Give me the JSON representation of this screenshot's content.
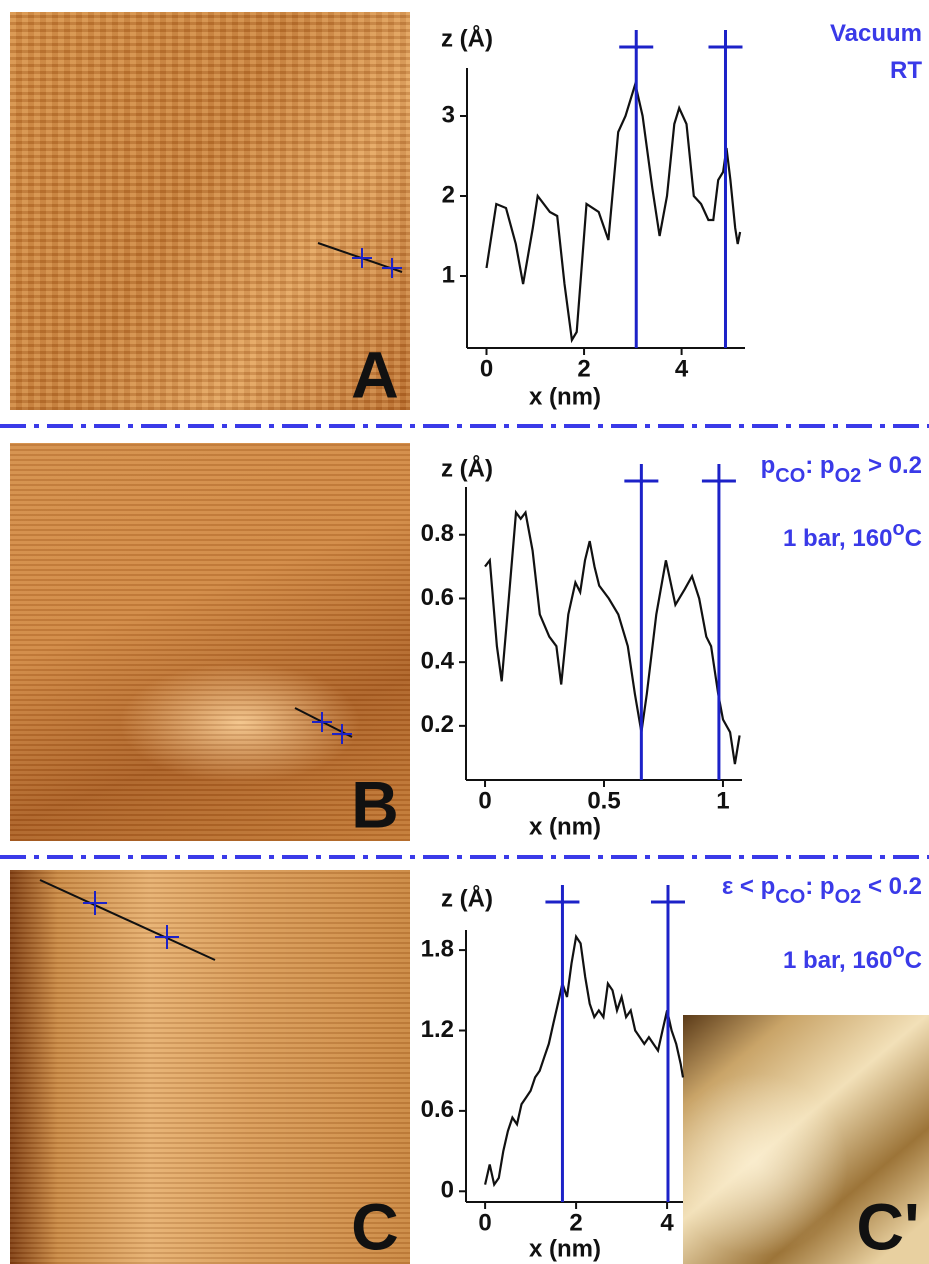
{
  "chart_data": [
    {
      "type": "line",
      "panel_label": "A",
      "x_label": "x (nm)",
      "y_label": "z (Å)",
      "x": [
        0,
        0.2,
        0.4,
        0.6,
        0.75,
        0.95,
        1.05,
        1.3,
        1.45,
        1.6,
        1.75,
        1.85,
        2.05,
        2.3,
        2.5,
        2.7,
        2.85,
        3.05,
        3.2,
        3.4,
        3.55,
        3.7,
        3.85,
        3.95,
        4.1,
        4.25,
        4.4,
        4.55,
        4.65,
        4.75,
        4.85,
        4.92,
        5.0,
        5.1,
        5.15,
        5.2
      ],
      "values": [
        1.1,
        1.9,
        1.85,
        1.4,
        0.9,
        1.6,
        2.0,
        1.8,
        1.75,
        0.9,
        0.2,
        0.3,
        1.9,
        1.8,
        1.45,
        2.8,
        3.0,
        3.4,
        3.0,
        2.1,
        1.5,
        2.0,
        2.9,
        3.1,
        2.9,
        2.0,
        1.9,
        1.7,
        1.7,
        2.2,
        2.3,
        2.6,
        2.2,
        1.6,
        1.4,
        1.55
      ],
      "color": "#111111",
      "xlim": [
        -0.4,
        5.3
      ],
      "ylim": [
        0.1,
        3.6
      ],
      "xticks": [
        0,
        2,
        4
      ],
      "yticks": [
        1,
        2,
        3
      ],
      "markers": [
        3.07,
        4.9
      ],
      "marker_color": "#1c22c8",
      "annotations": [
        [
          "Vacuum"
        ],
        [
          "RT"
        ]
      ]
    },
    {
      "type": "line",
      "panel_label": "B",
      "x_label": "x (nm)",
      "y_label": "z (Å)",
      "x": [
        0,
        0.02,
        0.05,
        0.07,
        0.1,
        0.13,
        0.15,
        0.17,
        0.2,
        0.23,
        0.27,
        0.3,
        0.32,
        0.35,
        0.38,
        0.4,
        0.42,
        0.44,
        0.46,
        0.48,
        0.52,
        0.56,
        0.6,
        0.63,
        0.657,
        0.68,
        0.72,
        0.76,
        0.8,
        0.84,
        0.87,
        0.9,
        0.93,
        0.95,
        0.98,
        1.0,
        1.03,
        1.05,
        1.07
      ],
      "values": [
        0.7,
        0.72,
        0.45,
        0.34,
        0.6,
        0.87,
        0.85,
        0.87,
        0.75,
        0.55,
        0.48,
        0.45,
        0.33,
        0.55,
        0.65,
        0.62,
        0.72,
        0.78,
        0.7,
        0.64,
        0.6,
        0.55,
        0.45,
        0.3,
        0.18,
        0.3,
        0.55,
        0.72,
        0.58,
        0.63,
        0.67,
        0.6,
        0.48,
        0.45,
        0.3,
        0.22,
        0.18,
        0.08,
        0.17
      ],
      "color": "#111111",
      "xlim": [
        -0.08,
        1.08
      ],
      "ylim": [
        0.03,
        0.95
      ],
      "xticks": [
        0,
        0.5,
        1
      ],
      "yticks": [
        0.2,
        0.4,
        0.6,
        0.8
      ],
      "markers": [
        0.657,
        0.983
      ],
      "marker_color": "#1c22c8",
      "annotations": [
        [
          "p",
          {
            "sub": "CO"
          },
          ": p",
          {
            "sub": "O2"
          },
          " > 0.2"
        ],
        [
          "1 bar, 160",
          {
            "sup": "o"
          },
          "C"
        ]
      ]
    },
    {
      "type": "line",
      "panel_label": "C",
      "inset_label": "C'",
      "x_label": "x (nm)",
      "y_label": "z (Å)",
      "x": [
        0,
        0.1,
        0.2,
        0.3,
        0.4,
        0.5,
        0.6,
        0.7,
        0.8,
        0.9,
        1.0,
        1.1,
        1.2,
        1.3,
        1.4,
        1.5,
        1.6,
        1.7,
        1.8,
        1.9,
        2.0,
        2.1,
        2.2,
        2.3,
        2.4,
        2.5,
        2.6,
        2.7,
        2.8,
        2.9,
        3.0,
        3.1,
        3.2,
        3.3,
        3.4,
        3.5,
        3.6,
        3.7,
        3.8,
        3.9,
        4.0,
        4.1,
        4.2,
        4.3,
        4.35
      ],
      "values": [
        0.05,
        0.2,
        0.05,
        0.1,
        0.3,
        0.45,
        0.55,
        0.5,
        0.65,
        0.7,
        0.75,
        0.85,
        0.9,
        1.0,
        1.1,
        1.25,
        1.4,
        1.55,
        1.45,
        1.7,
        1.9,
        1.85,
        1.6,
        1.4,
        1.3,
        1.35,
        1.3,
        1.55,
        1.5,
        1.35,
        1.45,
        1.3,
        1.35,
        1.2,
        1.15,
        1.1,
        1.15,
        1.1,
        1.05,
        1.2,
        1.35,
        1.2,
        1.1,
        0.95,
        0.85
      ],
      "color": "#111111",
      "xlim": [
        -0.42,
        4.35
      ],
      "ylim": [
        -0.08,
        1.95
      ],
      "xticks": [
        0,
        2,
        4
      ],
      "yticks": [
        0,
        0.6,
        1.2,
        1.8
      ],
      "markers": [
        1.7,
        4.02
      ],
      "marker_color": "#1c22c8",
      "annotations": [
        [
          "ε < p",
          {
            "sub": "CO"
          },
          ": p",
          {
            "sub": "O2"
          },
          " < 0.2"
        ],
        [
          "1 bar, 160",
          {
            "sup": "o"
          },
          "C"
        ]
      ]
    }
  ]
}
